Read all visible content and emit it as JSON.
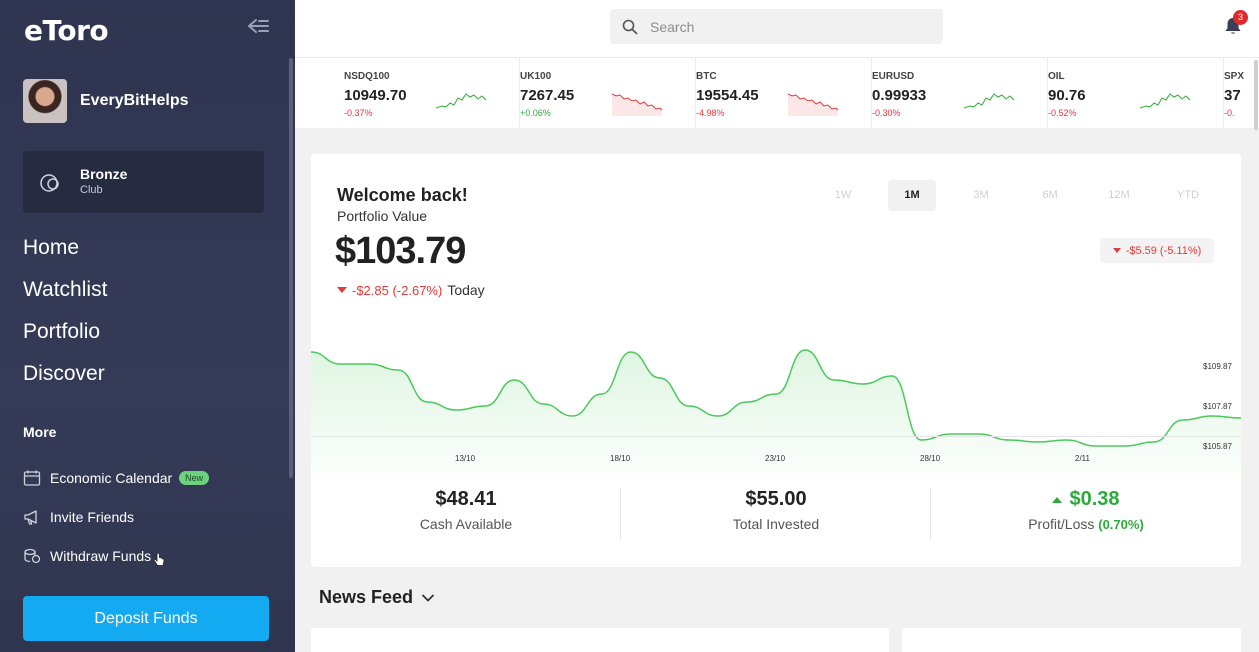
{
  "brand": {
    "logo": "eToro",
    "accent": "#13aaf2"
  },
  "user": {
    "name": "EveryBitHelps"
  },
  "club": {
    "title": "Bronze",
    "subtitle": "Club"
  },
  "nav": [
    "Home",
    "Watchlist",
    "Portfolio",
    "Discover"
  ],
  "more": {
    "title": "More",
    "items": [
      {
        "label": "Economic Calendar",
        "icon": "calendar-icon",
        "badge": "New"
      },
      {
        "label": "Invite Friends",
        "icon": "megaphone-icon"
      },
      {
        "label": "Withdraw Funds",
        "icon": "coins-icon"
      }
    ]
  },
  "deposit_label": "Deposit Funds",
  "search": {
    "placeholder": "Search"
  },
  "notifications": {
    "count": "3"
  },
  "ticker": [
    {
      "symbol": "NSDQ100",
      "value": "10949.70",
      "change": "-0.37%",
      "trend": "up"
    },
    {
      "symbol": "UK100",
      "value": "7267.45",
      "change": "+0.06%",
      "trend": "down"
    },
    {
      "symbol": "BTC",
      "value": "19554.45",
      "change": "-4.98%",
      "trend": "down"
    },
    {
      "symbol": "EURUSD",
      "value": "0.99933",
      "change": "-0.30%",
      "trend": "up"
    },
    {
      "symbol": "OIL",
      "value": "90.76",
      "change": "-0.52%",
      "trend": "up"
    },
    {
      "symbol": "SPX",
      "value": "37",
      "change": "-0.",
      "trend": "up"
    }
  ],
  "portfolio": {
    "welcome": "Welcome back!",
    "label": "Portfolio Value",
    "value": "$103.79",
    "today_change": "-$2.85 (-2.67%)",
    "today_label": "Today",
    "period_change": "-$5.59 (-5.11%)",
    "ranges": [
      "1W",
      "1M",
      "3M",
      "6M",
      "12M",
      "YTD"
    ],
    "active_range": "1M"
  },
  "chart_data": {
    "type": "area",
    "x_ticks": [
      "13/10",
      "18/10",
      "23/10",
      "28/10",
      "2/11"
    ],
    "y_ticks": [
      "$109.87",
      "$107.87",
      "$105.87"
    ],
    "ylim": [
      104.5,
      111.5
    ],
    "values": [
      110.6,
      110.0,
      110.0,
      109.7,
      108.1,
      107.7,
      107.9,
      109.2,
      108.0,
      107.4,
      108.5,
      110.6,
      109.3,
      107.9,
      107.4,
      108.1,
      108.5,
      110.7,
      109.2,
      109.0,
      109.4,
      106.2,
      106.5,
      106.5,
      106.2,
      106.1,
      106.2,
      105.9,
      105.9,
      106.1,
      107.2,
      107.4,
      107.3
    ]
  },
  "stats": [
    {
      "value": "$48.41",
      "label": "Cash Available"
    },
    {
      "value": "$55.00",
      "label": "Total Invested"
    },
    {
      "value": "$0.38",
      "label": "Profit/Loss",
      "pct": "(0.70%)"
    }
  ],
  "news": {
    "title": "News Feed"
  },
  "colors": {
    "positive": "#2eaa3c",
    "negative": "#e03a3a",
    "sidebar": "#353b57"
  }
}
